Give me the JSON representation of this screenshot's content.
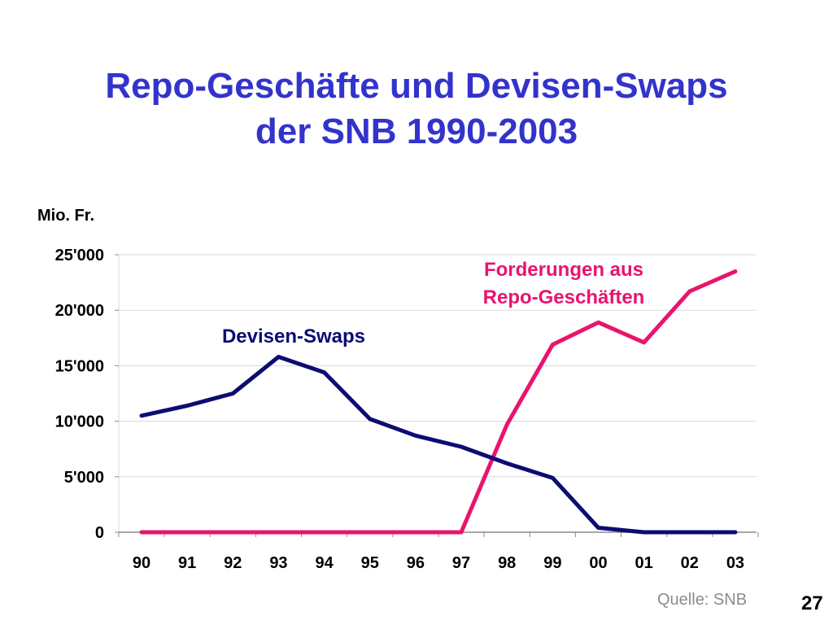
{
  "slide": {
    "title_line1": "Repo-Geschäfte und Devisen-Swaps",
    "title_line2": "der SNB 1990-2003",
    "source": "Quelle: SNB",
    "page_number": "27"
  },
  "colors": {
    "title": "#3333cc",
    "devisen_swaps": "#0c0c73",
    "repo": "#e8146e",
    "grid": "#d9d9d9",
    "axis": "#8c8c8c",
    "source": "#8c8c8c"
  },
  "chart_data": {
    "type": "line",
    "title": "",
    "xlabel": "",
    "ylabel": "Mio. Fr.",
    "ylim": [
      0,
      25000
    ],
    "yticks": [
      0,
      5000,
      10000,
      15000,
      20000,
      25000
    ],
    "ytick_labels": [
      "0",
      "5'000",
      "10'000",
      "15'000",
      "20'000",
      "25'000"
    ],
    "categories": [
      "90",
      "91",
      "92",
      "93",
      "94",
      "95",
      "96",
      "97",
      "98",
      "99",
      "00",
      "01",
      "02",
      "03"
    ],
    "grid": true,
    "series": [
      {
        "name": "Devisen-Swaps",
        "color": "#0c0c73",
        "values": [
          10500,
          11400,
          12500,
          15800,
          14400,
          10200,
          8700,
          7700,
          6200,
          4900,
          400,
          0,
          0,
          0
        ]
      },
      {
        "name": "Forderungen aus Repo-Geschäften",
        "name_lines": [
          "Forderungen aus",
          "Repo-Geschäften"
        ],
        "color": "#e8146e",
        "values": [
          0,
          0,
          0,
          0,
          0,
          0,
          0,
          0,
          9700,
          16900,
          18900,
          17100,
          21700,
          23500
        ]
      }
    ]
  }
}
